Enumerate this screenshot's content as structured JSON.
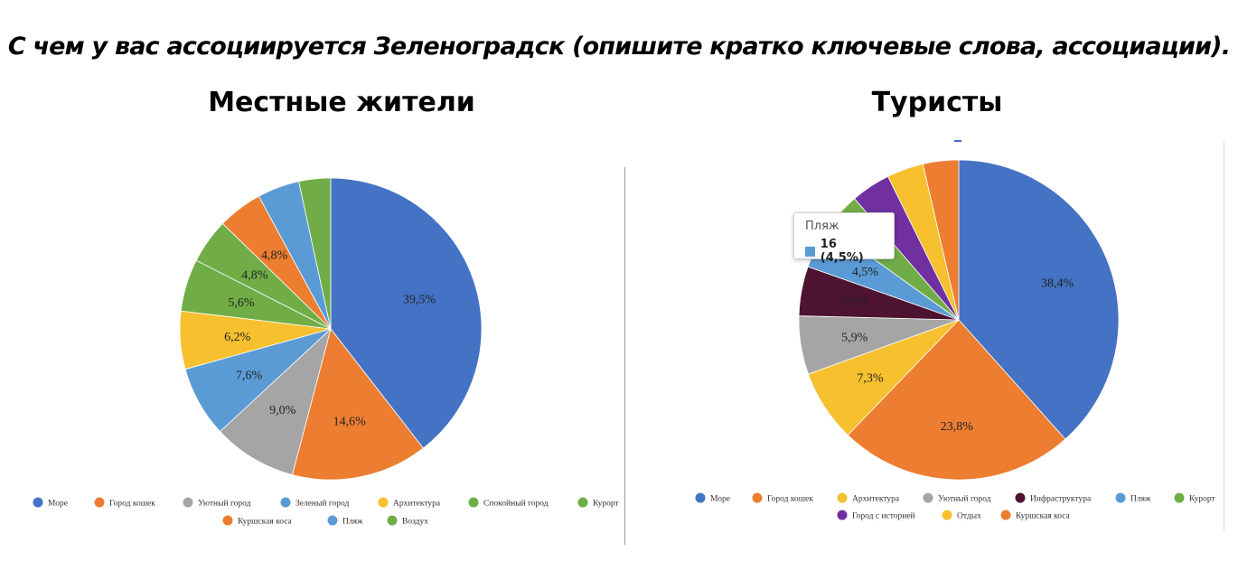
{
  "title": "С чем у вас ассоциируется Зеленоградск (опишите кратко ключевые слова, ассоциации).",
  "chart_data": [
    {
      "type": "pie",
      "title": "Местные жители",
      "slices": [
        {
          "label": "Море",
          "value": 39.5,
          "color": "#4472c4",
          "shown_label": "39,5%"
        },
        {
          "label": "Город кошек",
          "value": 14.6,
          "color": "#ed7d31",
          "shown_label": "14,6%"
        },
        {
          "label": "Уютный город",
          "value": 9.0,
          "color": "#a5a5a5",
          "shown_label": "9,0%"
        },
        {
          "label": "Зеленый город",
          "value": 7.6,
          "color": "#5b9bd5",
          "shown_label": "7,6%"
        },
        {
          "label": "Архитектура",
          "value": 6.2,
          "color": "#f6c02e",
          "shown_label": "6,2%"
        },
        {
          "label": "Спокойный город",
          "value": 5.6,
          "color": "#70ad47",
          "shown_label": "5,6%"
        },
        {
          "label": "Курорт",
          "value": 4.8,
          "color": "#70ad47",
          "shown_label": "4,8%"
        },
        {
          "label": "Куршская коса",
          "value": 4.8,
          "color": "#ed7d31",
          "shown_label": "4,8%"
        },
        {
          "label": "Пляж",
          "value": 4.5,
          "color": "#5b9bd5",
          "shown_label": ""
        },
        {
          "label": "Воздух",
          "value": 3.4,
          "color": "#70ad47",
          "shown_label": ""
        }
      ],
      "legend": {
        "rows": [
          [
            "Море",
            "Город кошек",
            "Уютный город",
            "Зеленый город",
            "Архитектура",
            "Спокойный город",
            "Курорт"
          ],
          [
            "Куршская коса",
            "Пляж",
            "Воздух"
          ]
        ],
        "placement": "bottom"
      }
    },
    {
      "type": "pie",
      "title": "Туристы",
      "slices": [
        {
          "label": "Море",
          "value": 38.4,
          "color": "#4472c4",
          "shown_label": "38,4%"
        },
        {
          "label": "Город кошек",
          "value": 23.8,
          "color": "#ed7d31",
          "shown_label": "23,8%"
        },
        {
          "label": "Архитектура",
          "value": 7.3,
          "color": "#f6c02e",
          "shown_label": "7,3%"
        },
        {
          "label": "Уютный город",
          "value": 5.9,
          "color": "#a5a5a5",
          "shown_label": "5,9%"
        },
        {
          "label": "Инфраструктура",
          "value": 5.0,
          "color": "#4d1331",
          "shown_label": "5,0%"
        },
        {
          "label": "Пляж",
          "value": 4.5,
          "color": "#5b9bd5",
          "shown_label": "4,5%"
        },
        {
          "label": "Курорт",
          "value": 3.8,
          "color": "#70ad47",
          "shown_label": ""
        },
        {
          "label": "Город с историей",
          "value": 4.0,
          "color": "#7030a0",
          "shown_label": ""
        },
        {
          "label": "Отдых",
          "value": 3.7,
          "color": "#f6c02e",
          "shown_label": ""
        },
        {
          "label": "Куршская коса",
          "value": 3.6,
          "color": "#ed7d31",
          "shown_label": ""
        }
      ],
      "legend": {
        "rows": [
          [
            "Море",
            "Город кошек",
            "Архитектура",
            "Уютный город",
            "Инфраструктура",
            "Пляж",
            "Курорт"
          ],
          [
            "Город с историей",
            "Отдых",
            "Куршская коса"
          ]
        ],
        "placement": "bottom"
      },
      "tooltip": {
        "label": "Пляж",
        "value_text": "16 (4,5%)",
        "color": "#5b9bd5"
      }
    }
  ]
}
